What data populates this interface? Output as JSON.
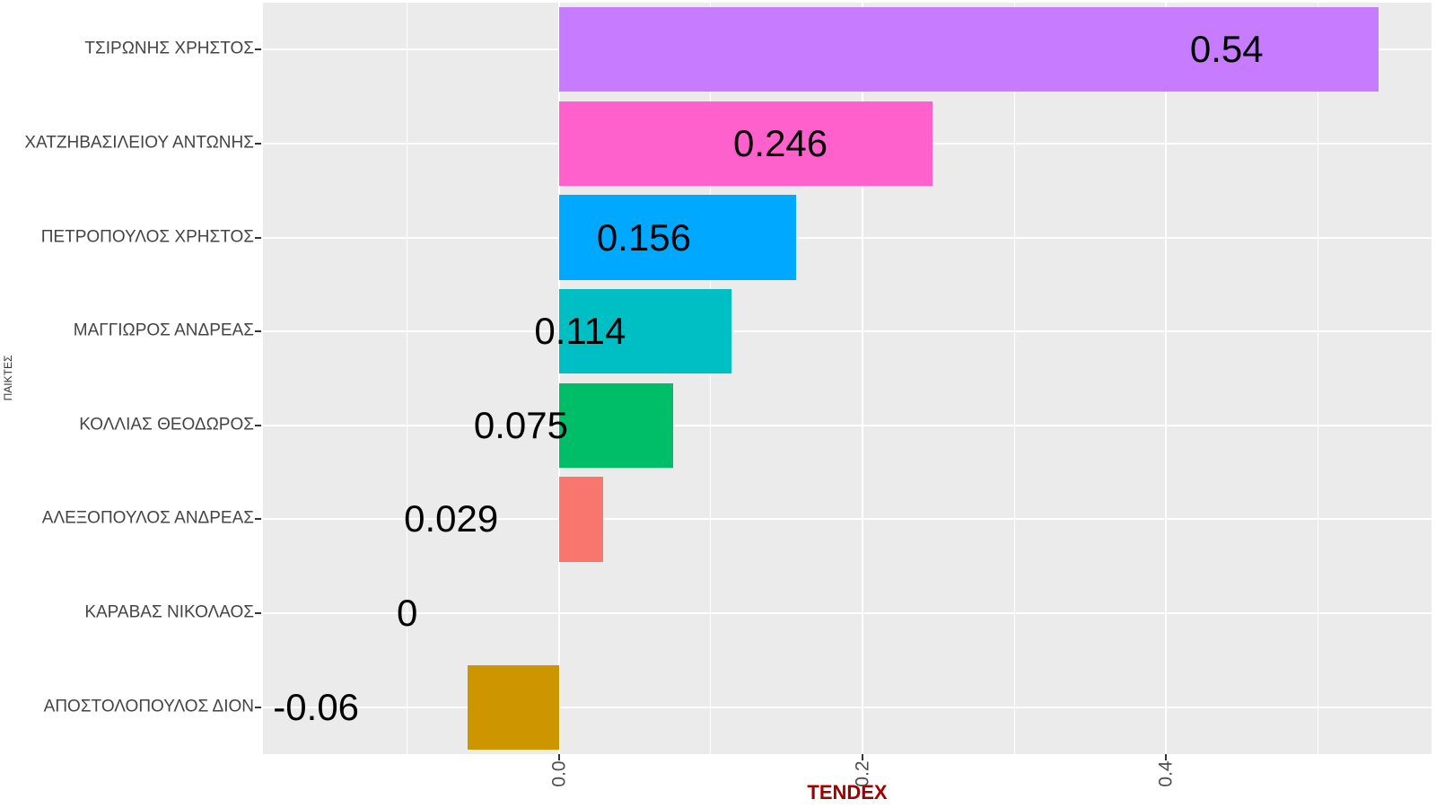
{
  "figure": {
    "background": "#FFFFFF"
  },
  "chart_data": {
    "type": "bar",
    "orientation": "horizontal",
    "title": "",
    "xlabel": "TENDEX",
    "ylabel": "ΠΑΙΚΤΕΣ",
    "categories": [
      "ΤΣΙΡΩΝΗΣ ΧΡΗΣΤΟΣ",
      "ΧΑΤΖΗΒΑΣΙΛΕΙΟΥ ΑΝΤΩΝΗΣ",
      "ΠΕΤΡΟΠΟΥΛΟΣ ΧΡΗΣΤΟΣ",
      "ΜΑΓΓΙΩΡΟΣ ΑΝΔΡΕΑΣ",
      "ΚΟΛΛΙΑΣ ΘΕΟΔΩΡΟΣ",
      "ΑΛΕΞΟΠΟΥΛΟΣ ΑΝΔΡΕΑΣ",
      "ΚΑΡΑΒΑΣ ΝΙΚΟΛΑΟΣ",
      "ΑΠΟΣΤΟΛΟΠΟΥΛΟΣ ΔΙΟΝ"
    ],
    "values": [
      0.54,
      0.246,
      0.156,
      0.114,
      0.075,
      0.029,
      0,
      -0.06
    ],
    "bar_labels": [
      "0.54",
      "0.246",
      "0.156",
      "0.114",
      "0.075",
      "0.029",
      "0",
      "-0.06"
    ],
    "bar_colors": [
      "#C77CFF",
      "#FF61CC",
      "#00A9FF",
      "#00BFC4",
      "#00BE67",
      "#F8766D",
      "#7CAE00",
      "#CD9600"
    ],
    "value_label_offset": -0.1,
    "xlim": [
      -0.195,
      0.575
    ],
    "x_major_ticks": [
      0.0,
      0.2,
      0.4
    ],
    "x_major_tick_labels": [
      "0.0",
      "0.2",
      "0.4"
    ],
    "x_minor_ticks": [
      -0.1,
      0.1,
      0.3,
      0.5
    ],
    "bar_relative_height": 0.9,
    "grid": true,
    "legend": "none",
    "panel_background": "#EBEBEB",
    "gridline_color": "#FFFFFF",
    "axis_text_color": "#4D4D4D",
    "tick_mark_color": "#333333",
    "category_text_color": "#444444",
    "x_title_color": "#A00000",
    "y_title_color": "#333333",
    "value_label_color": "#000000"
  }
}
